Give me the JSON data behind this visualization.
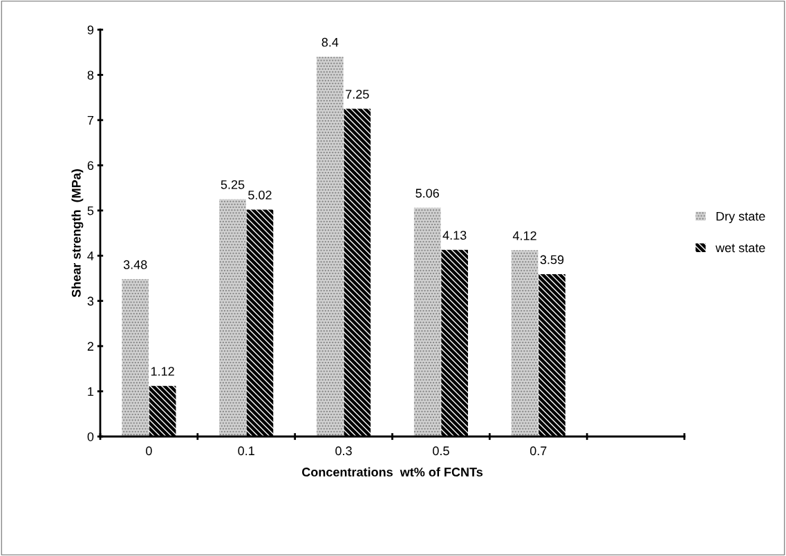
{
  "chart_data": {
    "type": "bar",
    "xlabel": "Concentrations  wt% of FCNTs",
    "ylabel": "Shear strength  (MPa)",
    "categories": [
      "0",
      "0.1",
      "0.3",
      "0.5",
      "0.7",
      null
    ],
    "series": [
      {
        "name": "Dry state",
        "color": "#d0d0d0",
        "values": [
          3.48,
          5.25,
          8.4,
          5.06,
          4.12,
          null
        ]
      },
      {
        "name": "wet state",
        "color": "#000000",
        "values": [
          1.12,
          5.02,
          7.25,
          4.13,
          3.59,
          null
        ]
      }
    ],
    "ylim": [
      0,
      9
    ],
    "yticks": [
      0,
      1,
      2,
      3,
      4,
      5,
      6,
      7,
      8,
      9
    ],
    "data_labels": true,
    "legend": "right",
    "grid": false
  }
}
